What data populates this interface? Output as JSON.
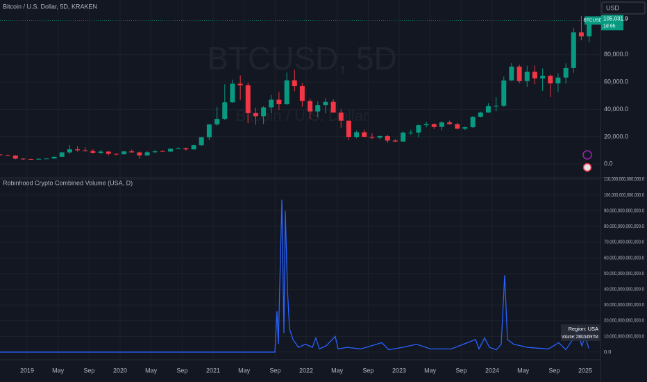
{
  "chart_data": [
    {
      "type": "candlestick",
      "title": "Bitcoin / U.S. Dollar, 5D, KRAKEN",
      "watermark": "BTCUSD, 5D",
      "watermark_subtitle": "Bitcoin / U.S. Dollar",
      "currency": "USD",
      "symbol": "BTCUSD",
      "last_price": {
        "value": 105031.9,
        "label": "105,031.9"
      },
      "countdown": "1d 6h",
      "up_color": "#089981",
      "down_color": "#f23645",
      "xlim": [
        2018.709,
        2025.164
      ],
      "ylim": [
        -10000,
        120000
      ],
      "yticks": [
        {
          "value": 0,
          "label": "0.0"
        },
        {
          "value": 20000,
          "label": "20,000.0"
        },
        {
          "value": 40000,
          "label": "40,000.0"
        },
        {
          "value": 60000,
          "label": "60,000.0"
        },
        {
          "value": 80000,
          "label": "80,000.0"
        }
      ],
      "grid": true,
      "x": [
        2018.708,
        2018.792,
        2018.875,
        2018.958,
        2019.042,
        2019.125,
        2019.208,
        2019.292,
        2019.375,
        2019.458,
        2019.542,
        2019.625,
        2019.708,
        2019.792,
        2019.875,
        2019.958,
        2020.042,
        2020.125,
        2020.208,
        2020.292,
        2020.375,
        2020.458,
        2020.542,
        2020.625,
        2020.708,
        2020.792,
        2020.875,
        2020.958,
        2021.042,
        2021.125,
        2021.208,
        2021.292,
        2021.375,
        2021.458,
        2021.542,
        2021.625,
        2021.708,
        2021.792,
        2021.875,
        2021.958,
        2022.042,
        2022.125,
        2022.208,
        2022.292,
        2022.375,
        2022.458,
        2022.542,
        2022.625,
        2022.708,
        2022.792,
        2022.875,
        2022.958,
        2023.042,
        2023.125,
        2023.208,
        2023.292,
        2023.375,
        2023.458,
        2023.542,
        2023.625,
        2023.708,
        2023.792,
        2023.875,
        2023.958,
        2024.042,
        2024.125,
        2024.208,
        2024.292,
        2024.375,
        2024.458,
        2024.542,
        2024.625,
        2024.708,
        2024.792,
        2024.875,
        2024.958,
        2025.042
      ],
      "open": [
        7000,
        6600,
        6300,
        4000,
        3700,
        3450,
        3850,
        4100,
        5300,
        8550,
        10800,
        10100,
        9600,
        8300,
        9150,
        7550,
        7200,
        9350,
        8550,
        6400,
        8650,
        9450,
        9150,
        11350,
        11650,
        10800,
        13800,
        19700,
        29000,
        33100,
        45200,
        58800,
        57700,
        37300,
        35000,
        41500,
        47100,
        43800,
        61300,
        57000,
        46200,
        38500,
        43200,
        45500,
        37700,
        31800,
        19900,
        23300,
        20000,
        19400,
        20500,
        17200,
        16500,
        23100,
        23100,
        28500,
        29200,
        27200,
        30500,
        29200,
        25900,
        27000,
        34600,
        37700,
        42300,
        42600,
        61200,
        71300,
        60700,
        67500,
        62700,
        64600,
        59000,
        63300,
        70300,
        96400,
        93400
      ],
      "high": [
        7400,
        7000,
        6600,
        4300,
        4100,
        4200,
        4100,
        5600,
        9000,
        13800,
        13200,
        12300,
        10900,
        10300,
        9500,
        7750,
        9600,
        10500,
        9200,
        9500,
        10100,
        10400,
        11500,
        12500,
        12100,
        14100,
        19900,
        29300,
        41900,
        58400,
        61800,
        64900,
        59600,
        41300,
        42400,
        50500,
        52900,
        67000,
        69000,
        59100,
        47900,
        45800,
        48200,
        47400,
        40000,
        31900,
        24600,
        25200,
        22700,
        21000,
        21500,
        18400,
        23900,
        25200,
        29200,
        31000,
        29800,
        31400,
        31800,
        30200,
        27500,
        35200,
        38400,
        44700,
        49000,
        64000,
        73800,
        72800,
        71900,
        72000,
        70000,
        65600,
        66500,
        73600,
        99800,
        108300,
        106500
      ],
      "low": [
        6300,
        6200,
        3500,
        3100,
        3400,
        3400,
        3700,
        4050,
        5300,
        7500,
        9100,
        9300,
        7700,
        7300,
        6500,
        6400,
        6900,
        8500,
        3800,
        6150,
        8100,
        8900,
        8950,
        11100,
        9900,
        10500,
        13200,
        17600,
        28200,
        32300,
        44900,
        47000,
        30000,
        28800,
        29300,
        37300,
        39600,
        43300,
        53300,
        42000,
        32900,
        34300,
        37200,
        37600,
        26700,
        17600,
        18800,
        19600,
        18200,
        18200,
        15500,
        16300,
        16500,
        21400,
        19600,
        26900,
        25800,
        24800,
        28900,
        25400,
        24900,
        26600,
        34100,
        37600,
        38500,
        41900,
        60800,
        59100,
        56500,
        58400,
        53500,
        49000,
        52600,
        58900,
        66800,
        90500,
        89200
      ],
      "close": [
        6600,
        6300,
        4000,
        3700,
        3450,
        3850,
        4100,
        5300,
        8550,
        10800,
        10100,
        9600,
        8300,
        9150,
        7550,
        7200,
        9350,
        8550,
        6400,
        8650,
        9450,
        9150,
        11350,
        11650,
        10800,
        13800,
        19700,
        29000,
        33100,
        45200,
        58800,
        57700,
        37300,
        35000,
        41500,
        47100,
        43800,
        61300,
        57000,
        46200,
        38500,
        43200,
        45500,
        37700,
        31800,
        19900,
        23300,
        20000,
        19400,
        20500,
        17200,
        16500,
        23100,
        23100,
        28500,
        29200,
        27200,
        30500,
        29200,
        25900,
        27000,
        34600,
        37700,
        42300,
        42600,
        61200,
        71300,
        60700,
        67500,
        62700,
        64600,
        59000,
        63300,
        70300,
        96400,
        93400,
        102400
      ]
    },
    {
      "type": "line",
      "title": "Robinhood Crypto Combined Volume (USA, D)",
      "color": "#2962ff",
      "tooltip": {
        "region": "Region: USA",
        "volume": "Volume: 23615459754"
      },
      "xlim": [
        2018.709,
        2025.164
      ],
      "xticks": [
        2019,
        {
          "value": 2019.333,
          "label": "May"
        },
        {
          "value": 2019.667,
          "label": "Sep"
        },
        2020,
        {
          "value": 2020.333,
          "label": "May"
        },
        {
          "value": 2020.667,
          "label": "Sep"
        },
        2021,
        {
          "value": 2021.333,
          "label": "May"
        },
        {
          "value": 2021.667,
          "label": "Sep"
        },
        2022,
        {
          "value": 2022.333,
          "label": "May"
        },
        {
          "value": 2022.667,
          "label": "Sep"
        },
        2023,
        {
          "value": 2023.333,
          "label": "May"
        },
        {
          "value": 2023.667,
          "label": "Sep"
        },
        2024,
        {
          "value": 2024.333,
          "label": "May"
        },
        {
          "value": 2024.667,
          "label": "Sep"
        },
        2025
      ],
      "ylim": [
        -4900000000000,
        111000000000000
      ],
      "yticks": [
        {
          "value": 0,
          "label": "0.0"
        },
        {
          "value": 10000000000000,
          "label": "10,000,000,000,000.0"
        },
        {
          "value": 20000000000000,
          "label": "20,000,000,000,000.0"
        },
        {
          "value": 30000000000000,
          "label": "30,000,000,000,000.0"
        },
        {
          "value": 40000000000000,
          "label": "40,000,000,000,000.0"
        },
        {
          "value": 50000000000000,
          "label": "50,000,000,000,000.0"
        },
        {
          "value": 60000000000000,
          "label": "60,000,000,000,000.0"
        },
        {
          "value": 70000000000000,
          "label": "70,000,000,000,000.0"
        },
        {
          "value": 80000000000000,
          "label": "80,000,000,000,000.0"
        },
        {
          "value": 90000000000000,
          "label": "90,000,000,000,000.0"
        },
        {
          "value": 100000000000000,
          "label": "100,000,000,000,000.0"
        },
        {
          "value": 110000000000000,
          "label": "110,000,000,000,000.0"
        }
      ],
      "grid": true,
      "x": [
        2018.709,
        2021.664,
        2021.687,
        2021.701,
        2021.739,
        2021.761,
        2021.776,
        2021.799,
        2021.821,
        2021.858,
        2021.918,
        2021.993,
        2022.067,
        2022.104,
        2022.142,
        2022.216,
        2022.313,
        2022.343,
        2022.44,
        2022.59,
        2022.813,
        2022.888,
        2023.037,
        2023.187,
        2023.336,
        2023.56,
        2023.821,
        2023.858,
        2023.918,
        2023.97,
        2024.045,
        2024.097,
        2024.134,
        2024.164,
        2024.231,
        2024.381,
        2024.604,
        2024.716,
        2024.791,
        2024.866,
        2024.918,
        2024.963,
        2025.0,
        2025.037
      ],
      "values": [
        0,
        0,
        26000000000000,
        5000000000000,
        97000000000000,
        12000000000000,
        90000000000000,
        40000000000000,
        15000000000000,
        8000000000000,
        3000000000000,
        5000000000000,
        3000000000000,
        9000000000000,
        2000000000000,
        4000000000000,
        10000000000000,
        2000000000000,
        3000000000000,
        2000000000000,
        6000000000000,
        1500000000000,
        3000000000000,
        5000000000000,
        2000000000000,
        2000000000000,
        8000000000000,
        2000000000000,
        9000000000000,
        3000000000000,
        1500000000000,
        5000000000000,
        49000000000000,
        8000000000000,
        5000000000000,
        3000000000000,
        2000000000000,
        6000000000000,
        1500000000000,
        8000000000000,
        14000000000000,
        4000000000000,
        10000000000000,
        2400000000000
      ]
    }
  ]
}
